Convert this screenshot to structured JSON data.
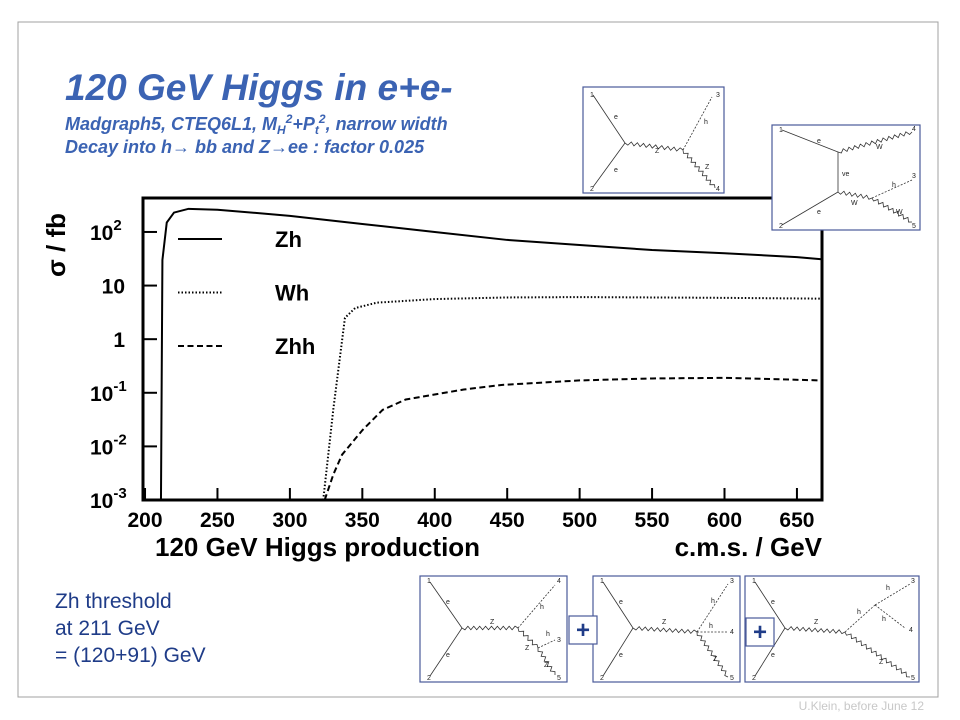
{
  "header": {
    "title": "120 GeV Higgs in e+e-",
    "subtitle": [
      {
        "text": "Madgraph5, CTEQ6L1, M"
      },
      {
        "text": "H",
        "pos": "sub"
      },
      {
        "text": "2",
        "pos": "sup"
      },
      {
        "text": "+P"
      },
      {
        "text": "t",
        "pos": "sub"
      },
      {
        "text": "2",
        "pos": "sup"
      },
      {
        "text": ", narrow width"
      }
    ],
    "subtitle2": "Decay into h→ bb and Z→ee : factor 0.025"
  },
  "chart_data": {
    "type": "line",
    "ylabel": "σ / fb",
    "xlabel": "c.m.s. / GeV",
    "annotation": "120 GeV Higgs production",
    "xlim": [
      198.6,
      667.3
    ],
    "xticks": [
      200,
      250,
      300,
      350,
      400,
      450,
      500,
      550,
      600,
      650
    ],
    "ylim": [
      0.001,
      430
    ],
    "log_y": true,
    "yticks": [
      {
        "value": 100,
        "label": "10^2"
      },
      10,
      1,
      {
        "value": 0.1,
        "label": "10^-1"
      },
      {
        "value": 0.01,
        "label": "10^-2"
      },
      {
        "value": 0.001,
        "label": "10^-3"
      }
    ],
    "legend": "top-left",
    "series": [
      {
        "name": "Zh",
        "color": "#000000",
        "dash": "solid",
        "x": [
          211,
          212,
          215,
          220,
          230,
          250,
          300,
          350,
          400,
          450,
          500,
          550,
          600,
          650,
          667
        ],
        "values": [
          0.001,
          30,
          150,
          230,
          270,
          260,
          200,
          141,
          100,
          71,
          57,
          46,
          40,
          34,
          31
        ]
      },
      {
        "name": "Wh",
        "color": "#000000",
        "dash": "dotted",
        "x": [
          323,
          330,
          338,
          345,
          360,
          400,
          450,
          500,
          550,
          600,
          667
        ],
        "values": [
          0.001,
          0.05,
          2.5,
          3.8,
          4.8,
          5.6,
          6,
          6.1,
          6,
          5.9,
          5.7
        ]
      },
      {
        "name": "Zhh",
        "color": "#000000",
        "dash": "dashed",
        "x": [
          324,
          330,
          336,
          350,
          364,
          380,
          398,
          420,
          446,
          500,
          550,
          600,
          667
        ],
        "values": [
          0.001,
          0.003,
          0.007,
          0.02,
          0.048,
          0.075,
          0.091,
          0.115,
          0.14,
          0.17,
          0.185,
          0.19,
          0.17
        ]
      }
    ]
  },
  "diagrams": [
    {
      "labels": [
        "1",
        "e",
        "e",
        "2",
        "Z",
        "3",
        "h",
        "Z",
        "4"
      ]
    },
    {
      "labels": [
        "1",
        "e",
        "W",
        "4",
        "ve",
        "h",
        "3",
        "W",
        "W",
        "e",
        "2",
        "5"
      ]
    },
    {
      "labels": [
        "1",
        "e",
        "e",
        "2",
        "Z",
        "4",
        "h",
        "Z",
        "h",
        "3",
        "Z",
        "5"
      ]
    },
    {
      "labels": [
        "1",
        "e",
        "e",
        "2",
        "Z",
        "3",
        "h",
        "h",
        "4",
        "Z",
        "5"
      ]
    },
    {
      "labels": [
        "1",
        "e",
        "e",
        "2",
        "Z",
        "3",
        "h",
        "h",
        "h",
        "4",
        "Z",
        "5"
      ]
    }
  ],
  "plus": [
    "+",
    "+"
  ],
  "notes": [
    "Zh threshold",
    "at 211 GeV",
    "= (120+91) GeV"
  ],
  "footer": "U.Klein, before June 12"
}
